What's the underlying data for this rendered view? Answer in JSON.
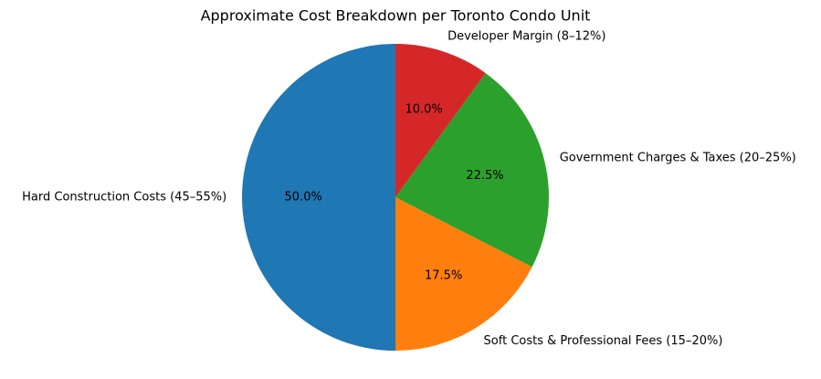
{
  "chart_data": {
    "type": "pie",
    "title": "Approximate Cost Breakdown per Toronto Condo Unit",
    "categories": [
      "Hard Construction Costs (45–55%)",
      "Soft Costs & Professional Fees (15–20%)",
      "Government Charges & Taxes (20–25%)",
      "Developer Margin (8–12%)"
    ],
    "values": [
      50,
      17.5,
      22.5,
      10
    ],
    "value_labels": [
      "50.0%",
      "17.5%",
      "22.5%",
      "10.0%"
    ],
    "colors": [
      "#1f77b4",
      "#ff7f0e",
      "#2ca02c",
      "#d62728"
    ]
  }
}
